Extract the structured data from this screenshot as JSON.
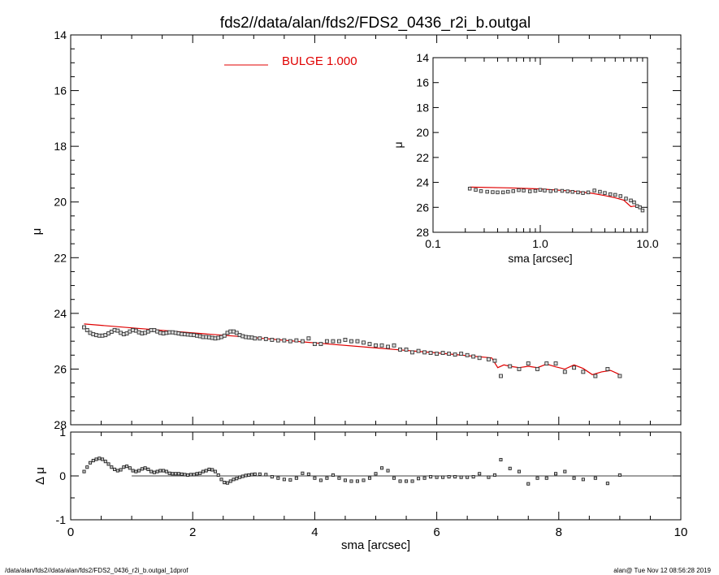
{
  "chart_data": [
    {
      "type": "scatter",
      "title": "fds2//data/alan/fds2/FDS2_0436_r2i_b.outgal",
      "ylabel": "μ",
      "xlim": [
        0,
        10
      ],
      "ylim": [
        28,
        14
      ],
      "y_inverted": true,
      "yticks": [
        "14",
        "16",
        "18",
        "20",
        "22",
        "24",
        "26",
        "28"
      ],
      "legend": {
        "label": "BULGE  1.000",
        "color": "#e00000",
        "placement": "top-center"
      },
      "series": [
        {
          "kind": "points",
          "x": [
            0.22,
            0.27,
            0.32,
            0.37,
            0.42,
            0.47,
            0.52,
            0.57,
            0.62,
            0.67,
            0.72,
            0.77,
            0.82,
            0.87,
            0.92,
            0.97,
            1.02,
            1.07,
            1.12,
            1.17,
            1.22,
            1.27,
            1.32,
            1.37,
            1.42,
            1.47,
            1.52,
            1.57,
            1.62,
            1.67,
            1.72,
            1.77,
            1.82,
            1.87,
            1.92,
            1.97,
            2.02,
            2.07,
            2.12,
            2.17,
            2.22,
            2.27,
            2.32,
            2.37,
            2.42,
            2.47,
            2.52,
            2.57,
            2.62,
            2.67,
            2.72,
            2.77,
            2.82,
            2.87,
            2.92,
            2.97,
            3.02,
            3.1,
            3.2,
            3.3,
            3.4,
            3.5,
            3.6,
            3.7,
            3.8,
            3.9,
            4.0,
            4.1,
            4.2,
            4.3,
            4.4,
            4.5,
            4.6,
            4.7,
            4.8,
            4.9,
            5.0,
            5.1,
            5.2,
            5.3,
            5.4,
            5.5,
            5.6,
            5.7,
            5.8,
            5.9,
            6.0,
            6.1,
            6.2,
            6.3,
            6.4,
            6.5,
            6.6,
            6.7,
            6.85,
            6.95,
            7.05,
            7.2,
            7.35,
            7.5,
            7.65,
            7.8,
            7.95,
            8.1,
            8.25,
            8.4,
            8.6,
            8.8,
            9.0
          ],
          "y": [
            24.5,
            24.6,
            24.7,
            24.75,
            24.78,
            24.8,
            24.8,
            24.78,
            24.72,
            24.66,
            24.6,
            24.62,
            24.7,
            24.75,
            24.72,
            24.65,
            24.6,
            24.62,
            24.68,
            24.72,
            24.7,
            24.65,
            24.6,
            24.6,
            24.65,
            24.7,
            24.72,
            24.7,
            24.68,
            24.68,
            24.7,
            24.72,
            24.74,
            24.75,
            24.76,
            24.77,
            24.78,
            24.8,
            24.82,
            24.85,
            24.85,
            24.86,
            24.88,
            24.9,
            24.88,
            24.85,
            24.8,
            24.7,
            24.65,
            24.65,
            24.7,
            24.78,
            24.82,
            24.85,
            24.86,
            24.87,
            24.9,
            24.9,
            24.92,
            24.95,
            24.97,
            24.97,
            25.0,
            24.97,
            25.0,
            24.9,
            25.1,
            25.1,
            25.0,
            25.0,
            25.0,
            24.95,
            25.0,
            25.0,
            25.05,
            25.1,
            25.15,
            25.15,
            25.2,
            25.15,
            25.3,
            25.3,
            25.4,
            25.35,
            25.4,
            25.42,
            25.45,
            25.42,
            25.45,
            25.48,
            25.45,
            25.5,
            25.55,
            25.6,
            25.65,
            25.7,
            26.25,
            25.9,
            26.0,
            25.8,
            26.0,
            25.8,
            25.8,
            26.1,
            25.95,
            26.1,
            26.25,
            26.0,
            26.25
          ]
        },
        {
          "kind": "line",
          "name": "BULGE  1.000",
          "color": "#e00000",
          "x": [
            0.22,
            1.0,
            2.0,
            3.0,
            4.0,
            5.0,
            6.0,
            6.9,
            7.0,
            7.1,
            7.2,
            7.35,
            7.5,
            7.65,
            7.8,
            7.95,
            8.1,
            8.25,
            8.4,
            8.55,
            8.7,
            8.85,
            9.0
          ],
          "y": [
            24.38,
            24.52,
            24.7,
            24.87,
            25.06,
            25.24,
            25.42,
            25.6,
            25.95,
            25.85,
            25.9,
            25.95,
            25.9,
            25.95,
            25.82,
            25.92,
            26.0,
            25.85,
            25.98,
            26.2,
            26.1,
            26.05,
            26.2
          ]
        }
      ]
    },
    {
      "type": "scatter",
      "xlabel": "sma [arcsec]",
      "ylabel": "Δ μ",
      "xlim": [
        0,
        10
      ],
      "ylim": [
        -1,
        1
      ],
      "xticks": [
        "0",
        "2",
        "4",
        "6",
        "8",
        "10"
      ],
      "yticks": [
        "1",
        "0",
        "-1"
      ],
      "zero_line": true,
      "series": [
        {
          "kind": "points",
          "x": [
            0.22,
            0.27,
            0.32,
            0.37,
            0.42,
            0.47,
            0.52,
            0.57,
            0.62,
            0.67,
            0.72,
            0.77,
            0.82,
            0.87,
            0.92,
            0.97,
            1.02,
            1.07,
            1.12,
            1.17,
            1.22,
            1.27,
            1.32,
            1.37,
            1.42,
            1.47,
            1.52,
            1.57,
            1.62,
            1.67,
            1.72,
            1.77,
            1.82,
            1.87,
            1.92,
            1.97,
            2.02,
            2.07,
            2.12,
            2.17,
            2.22,
            2.27,
            2.32,
            2.37,
            2.42,
            2.47,
            2.52,
            2.57,
            2.62,
            2.67,
            2.72,
            2.77,
            2.82,
            2.87,
            2.92,
            2.97,
            3.02,
            3.1,
            3.2,
            3.3,
            3.4,
            3.5,
            3.6,
            3.7,
            3.8,
            3.9,
            4.0,
            4.1,
            4.2,
            4.3,
            4.4,
            4.5,
            4.6,
            4.7,
            4.8,
            4.9,
            5.0,
            5.1,
            5.2,
            5.3,
            5.4,
            5.5,
            5.6,
            5.7,
            5.8,
            5.9,
            6.0,
            6.1,
            6.2,
            6.3,
            6.4,
            6.5,
            6.6,
            6.7,
            6.85,
            6.95,
            7.05,
            7.2,
            7.35,
            7.5,
            7.65,
            7.8,
            7.95,
            8.1,
            8.25,
            8.4,
            8.6,
            8.8,
            9.0
          ],
          "y": [
            0.1,
            0.2,
            0.3,
            0.35,
            0.38,
            0.4,
            0.38,
            0.33,
            0.27,
            0.2,
            0.15,
            0.12,
            0.14,
            0.2,
            0.22,
            0.18,
            0.12,
            0.1,
            0.12,
            0.16,
            0.18,
            0.15,
            0.1,
            0.08,
            0.1,
            0.12,
            0.12,
            0.1,
            0.06,
            0.05,
            0.05,
            0.05,
            0.04,
            0.03,
            0.02,
            0.03,
            0.03,
            0.05,
            0.06,
            0.1,
            0.12,
            0.15,
            0.14,
            0.1,
            0.02,
            -0.08,
            -0.15,
            -0.16,
            -0.12,
            -0.08,
            -0.06,
            -0.03,
            -0.01,
            0.01,
            0.02,
            0.03,
            0.04,
            0.04,
            0.03,
            -0.02,
            -0.05,
            -0.08,
            -0.09,
            -0.05,
            0.06,
            0.04,
            -0.05,
            -0.1,
            -0.05,
            0.02,
            -0.05,
            -0.1,
            -0.12,
            -0.12,
            -0.1,
            -0.05,
            0.05,
            0.18,
            0.12,
            -0.05,
            -0.12,
            -0.12,
            -0.12,
            -0.06,
            -0.05,
            -0.02,
            -0.03,
            -0.03,
            -0.02,
            -0.02,
            -0.03,
            -0.03,
            -0.02,
            0.05,
            -0.03,
            0.02,
            0.37,
            0.17,
            0.1,
            -0.18,
            -0.05,
            -0.05,
            0.05,
            0.1,
            -0.05,
            -0.08,
            -0.05,
            -0.17,
            0.02
          ]
        }
      ]
    },
    {
      "type": "scatter",
      "xlabel": "sma [arcsec]",
      "ylabel": "μ",
      "x_scale": "log",
      "xlim": [
        0.1,
        10
      ],
      "ylim": [
        28,
        14
      ],
      "y_inverted": true,
      "xticks": [
        "0.1",
        "1.0",
        "10.0"
      ],
      "yticks": [
        "14",
        "16",
        "18",
        "20",
        "22",
        "24",
        "26",
        "28"
      ],
      "series": [
        {
          "kind": "points",
          "x": [
            0.22,
            0.25,
            0.28,
            0.32,
            0.36,
            0.4,
            0.45,
            0.5,
            0.56,
            0.63,
            0.7,
            0.8,
            0.9,
            1.0,
            1.1,
            1.25,
            1.4,
            1.6,
            1.8,
            2.0,
            2.25,
            2.5,
            2.8,
            3.2,
            3.6,
            4.0,
            4.5,
            5.0,
            5.6,
            6.3,
            7.0,
            7.5,
            8.0,
            8.5,
            9.0
          ],
          "y": [
            24.5,
            24.6,
            24.7,
            24.75,
            24.78,
            24.8,
            24.8,
            24.75,
            24.7,
            24.62,
            24.65,
            24.72,
            24.68,
            24.6,
            24.65,
            24.7,
            24.65,
            24.68,
            24.72,
            24.76,
            24.8,
            24.85,
            24.8,
            24.65,
            24.75,
            24.85,
            24.95,
            25.0,
            25.1,
            25.3,
            25.45,
            25.6,
            25.9,
            26.0,
            26.25
          ]
        },
        {
          "kind": "line",
          "name": "BULGE  1.000",
          "color": "#e00000",
          "x": [
            0.22,
            0.5,
            1.0,
            2.0,
            3.0,
            4.0,
            5.0,
            6.0,
            7.0,
            7.5,
            8.0,
            8.5,
            9.0
          ],
          "y": [
            24.38,
            24.44,
            24.52,
            24.7,
            24.87,
            25.06,
            25.24,
            25.42,
            25.95,
            25.9,
            25.95,
            26.05,
            26.2
          ]
        }
      ]
    }
  ],
  "footer": {
    "left": "/data/alan/fds2//data/alan/fds2/FDS2_0436_r2i_b.outgal_1dprof",
    "right": "alan@  Tue Nov 12 08:56:28 2019"
  }
}
